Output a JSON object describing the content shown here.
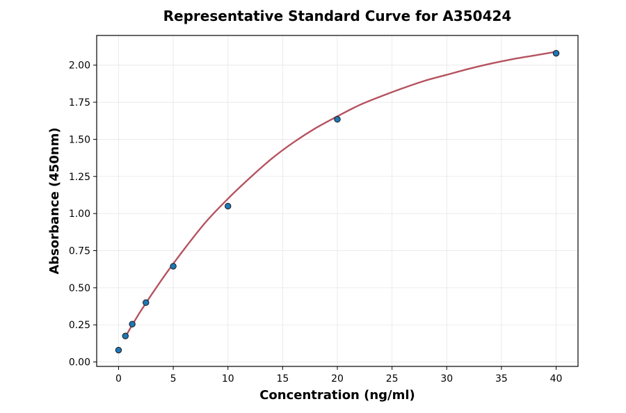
{
  "chart_data": {
    "type": "scatter",
    "title": "Representative Standard Curve for A350424",
    "xlabel": "Concentration (ng/ml)",
    "ylabel": "Absorbance (450nm)",
    "xlim": [
      -2,
      42
    ],
    "ylim": [
      -0.03,
      2.2
    ],
    "xticks": [
      0,
      5,
      10,
      15,
      20,
      25,
      30,
      35,
      40
    ],
    "xtick_labels": [
      "0",
      "5",
      "10",
      "15",
      "20",
      "25",
      "30",
      "35",
      "40"
    ],
    "yticks": [
      0,
      0.25,
      0.5,
      0.75,
      1.0,
      1.25,
      1.5,
      1.75,
      2.0
    ],
    "ytick_labels": [
      "0.00",
      "0.25",
      "0.50",
      "0.75",
      "1.00",
      "1.25",
      "1.50",
      "1.75",
      "2.00"
    ],
    "grid": true,
    "series": [
      {
        "type": "scatter",
        "x": [
          0,
          0.625,
          1.25,
          2.5,
          5,
          10,
          20,
          40
        ],
        "y": [
          0.08,
          0.175,
          0.255,
          0.4,
          0.645,
          1.05,
          1.635,
          2.08
        ],
        "color": "#1f77b4",
        "edge_color": "#1a1a1a"
      },
      {
        "type": "line",
        "x": [
          0.625,
          2,
          4,
          6,
          8,
          10,
          12,
          14,
          16,
          18,
          20,
          22,
          24,
          26,
          28,
          30,
          32,
          34,
          36,
          38,
          40
        ],
        "y": [
          0.17,
          0.34,
          0.56,
          0.76,
          0.945,
          1.1,
          1.24,
          1.37,
          1.48,
          1.575,
          1.655,
          1.73,
          1.79,
          1.845,
          1.895,
          1.935,
          1.975,
          2.01,
          2.04,
          2.065,
          2.09
        ],
        "color": "#b5525f"
      }
    ]
  }
}
